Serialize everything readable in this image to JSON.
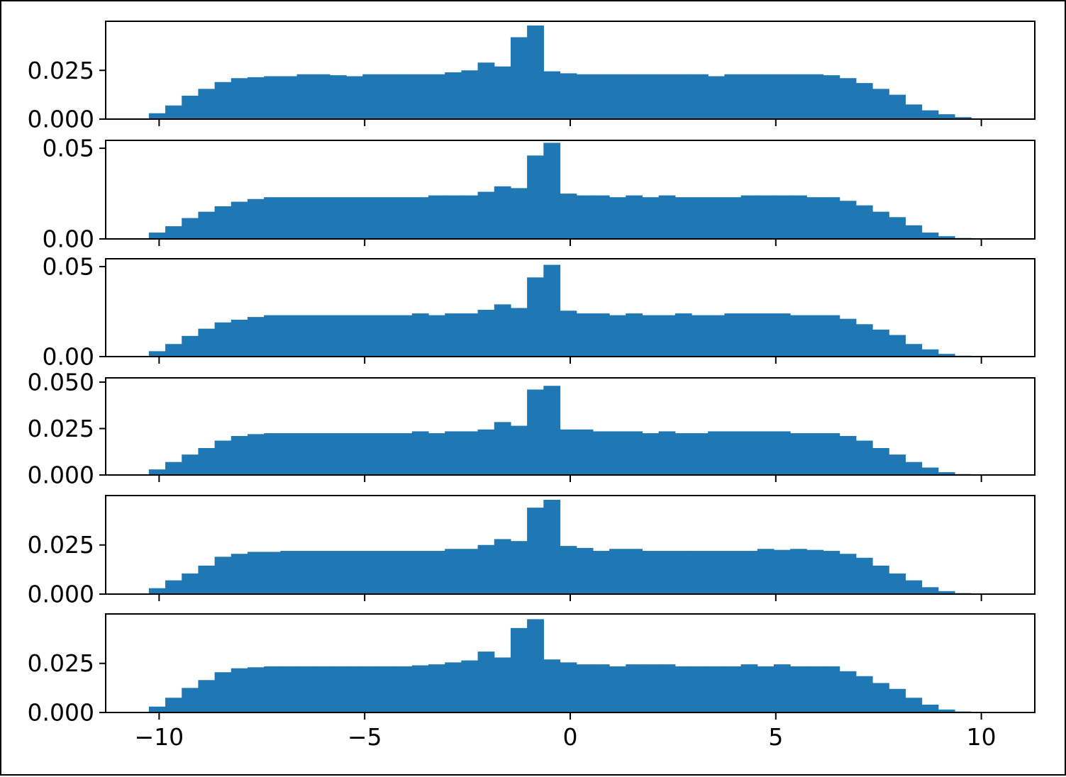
{
  "chart_data": {
    "type": "bar",
    "subtype": "stacked-histogram-panels",
    "bar_color": "#1f77b4",
    "xlim": [
      -11.3,
      11.3
    ],
    "x_ticks": [
      -10,
      -5,
      0,
      5,
      10
    ],
    "x_tick_labels": [
      "−10",
      "−5",
      "0",
      "5",
      "10"
    ],
    "bin_edges": [
      -10.25,
      -9.85,
      -9.45,
      -9.05,
      -8.65,
      -8.25,
      -7.85,
      -7.45,
      -7.05,
      -6.65,
      -6.25,
      -5.85,
      -5.45,
      -5.05,
      -4.65,
      -4.25,
      -3.85,
      -3.45,
      -3.05,
      -2.65,
      -2.25,
      -1.85,
      -1.45,
      -1.05,
      -0.65,
      -0.25,
      0.15,
      0.55,
      0.95,
      1.35,
      1.75,
      2.15,
      2.55,
      2.95,
      3.35,
      3.75,
      4.15,
      4.55,
      4.95,
      5.35,
      5.75,
      6.15,
      6.55,
      6.95,
      7.35,
      7.75,
      8.15,
      8.55,
      8.95,
      9.35,
      9.75
    ],
    "panels": [
      {
        "ylim": [
          0,
          0.048
        ],
        "y_ticks": [
          0,
          0.025
        ],
        "y_tick_labels": [
          "0.000",
          "0.025"
        ],
        "values": [
          0.003,
          0.007,
          0.012,
          0.0155,
          0.019,
          0.021,
          0.0215,
          0.022,
          0.022,
          0.023,
          0.023,
          0.0225,
          0.022,
          0.023,
          0.023,
          0.023,
          0.023,
          0.023,
          0.024,
          0.025,
          0.029,
          0.027,
          0.042,
          0.048,
          0.0245,
          0.0235,
          0.023,
          0.023,
          0.023,
          0.023,
          0.023,
          0.023,
          0.023,
          0.023,
          0.022,
          0.023,
          0.023,
          0.023,
          0.023,
          0.023,
          0.023,
          0.0225,
          0.021,
          0.0185,
          0.0155,
          0.0125,
          0.0075,
          0.0045,
          0.0025,
          0.001
        ]
      },
      {
        "ylim": [
          0,
          0.052
        ],
        "y_ticks": [
          0,
          0.05
        ],
        "y_tick_labels": [
          "0.00",
          "0.05"
        ],
        "values": [
          0.0035,
          0.007,
          0.0115,
          0.015,
          0.018,
          0.0205,
          0.022,
          0.023,
          0.023,
          0.023,
          0.023,
          0.023,
          0.023,
          0.023,
          0.023,
          0.023,
          0.023,
          0.024,
          0.024,
          0.024,
          0.026,
          0.029,
          0.028,
          0.046,
          0.053,
          0.025,
          0.024,
          0.024,
          0.023,
          0.024,
          0.023,
          0.024,
          0.023,
          0.023,
          0.023,
          0.023,
          0.024,
          0.024,
          0.024,
          0.024,
          0.023,
          0.023,
          0.021,
          0.0185,
          0.015,
          0.012,
          0.0075,
          0.0035,
          0.0015,
          0.0005
        ]
      },
      {
        "ylim": [
          0,
          0.052
        ],
        "y_ticks": [
          0,
          0.05
        ],
        "y_tick_labels": [
          "0.00",
          "0.05"
        ],
        "values": [
          0.003,
          0.007,
          0.0115,
          0.0155,
          0.019,
          0.0205,
          0.022,
          0.023,
          0.023,
          0.023,
          0.023,
          0.023,
          0.023,
          0.023,
          0.023,
          0.023,
          0.024,
          0.023,
          0.024,
          0.024,
          0.026,
          0.029,
          0.027,
          0.044,
          0.051,
          0.0255,
          0.024,
          0.024,
          0.023,
          0.024,
          0.023,
          0.023,
          0.024,
          0.023,
          0.023,
          0.024,
          0.024,
          0.024,
          0.024,
          0.023,
          0.023,
          0.023,
          0.021,
          0.018,
          0.015,
          0.012,
          0.007,
          0.004,
          0.0015,
          0.0005
        ]
      },
      {
        "ylim": [
          0,
          0.05
        ],
        "y_ticks": [
          0,
          0.025,
          0.05
        ],
        "y_tick_labels": [
          "0.000",
          "0.025",
          "0.050"
        ],
        "values": [
          0.003,
          0.007,
          0.011,
          0.0145,
          0.0185,
          0.021,
          0.022,
          0.0225,
          0.0225,
          0.0225,
          0.0225,
          0.0225,
          0.0225,
          0.0225,
          0.0225,
          0.0225,
          0.0235,
          0.0225,
          0.0235,
          0.0235,
          0.0245,
          0.0285,
          0.0265,
          0.046,
          0.048,
          0.0245,
          0.0245,
          0.0235,
          0.0235,
          0.0235,
          0.0225,
          0.0235,
          0.0225,
          0.0225,
          0.0235,
          0.0235,
          0.0235,
          0.0235,
          0.0235,
          0.0225,
          0.0225,
          0.0225,
          0.021,
          0.0185,
          0.0145,
          0.011,
          0.007,
          0.004,
          0.0015,
          0.0005
        ]
      },
      {
        "ylim": [
          0,
          0.048
        ],
        "y_ticks": [
          0,
          0.025
        ],
        "y_tick_labels": [
          "0.000",
          "0.025"
        ],
        "values": [
          0.003,
          0.007,
          0.0105,
          0.0145,
          0.019,
          0.0205,
          0.0215,
          0.0215,
          0.022,
          0.022,
          0.022,
          0.022,
          0.022,
          0.022,
          0.022,
          0.022,
          0.022,
          0.022,
          0.023,
          0.023,
          0.025,
          0.028,
          0.027,
          0.044,
          0.048,
          0.0245,
          0.0235,
          0.022,
          0.023,
          0.023,
          0.022,
          0.022,
          0.022,
          0.022,
          0.022,
          0.022,
          0.022,
          0.023,
          0.0225,
          0.023,
          0.0225,
          0.022,
          0.0205,
          0.0185,
          0.0145,
          0.0105,
          0.007,
          0.0035,
          0.0015,
          0.0005
        ]
      },
      {
        "ylim": [
          0,
          0.048
        ],
        "y_ticks": [
          0,
          0.025
        ],
        "y_tick_labels": [
          "0.000",
          "0.025"
        ],
        "values": [
          0.003,
          0.0075,
          0.0125,
          0.0165,
          0.0205,
          0.0225,
          0.023,
          0.0235,
          0.0235,
          0.0235,
          0.0235,
          0.0235,
          0.0235,
          0.0235,
          0.0235,
          0.0235,
          0.024,
          0.0245,
          0.0255,
          0.0265,
          0.031,
          0.028,
          0.043,
          0.0475,
          0.027,
          0.0255,
          0.0245,
          0.0245,
          0.0235,
          0.0245,
          0.0245,
          0.0245,
          0.0235,
          0.0235,
          0.0235,
          0.0235,
          0.0245,
          0.0235,
          0.0245,
          0.0235,
          0.0235,
          0.0235,
          0.021,
          0.0185,
          0.015,
          0.012,
          0.0075,
          0.004,
          0.0015,
          0.0005
        ]
      }
    ]
  }
}
